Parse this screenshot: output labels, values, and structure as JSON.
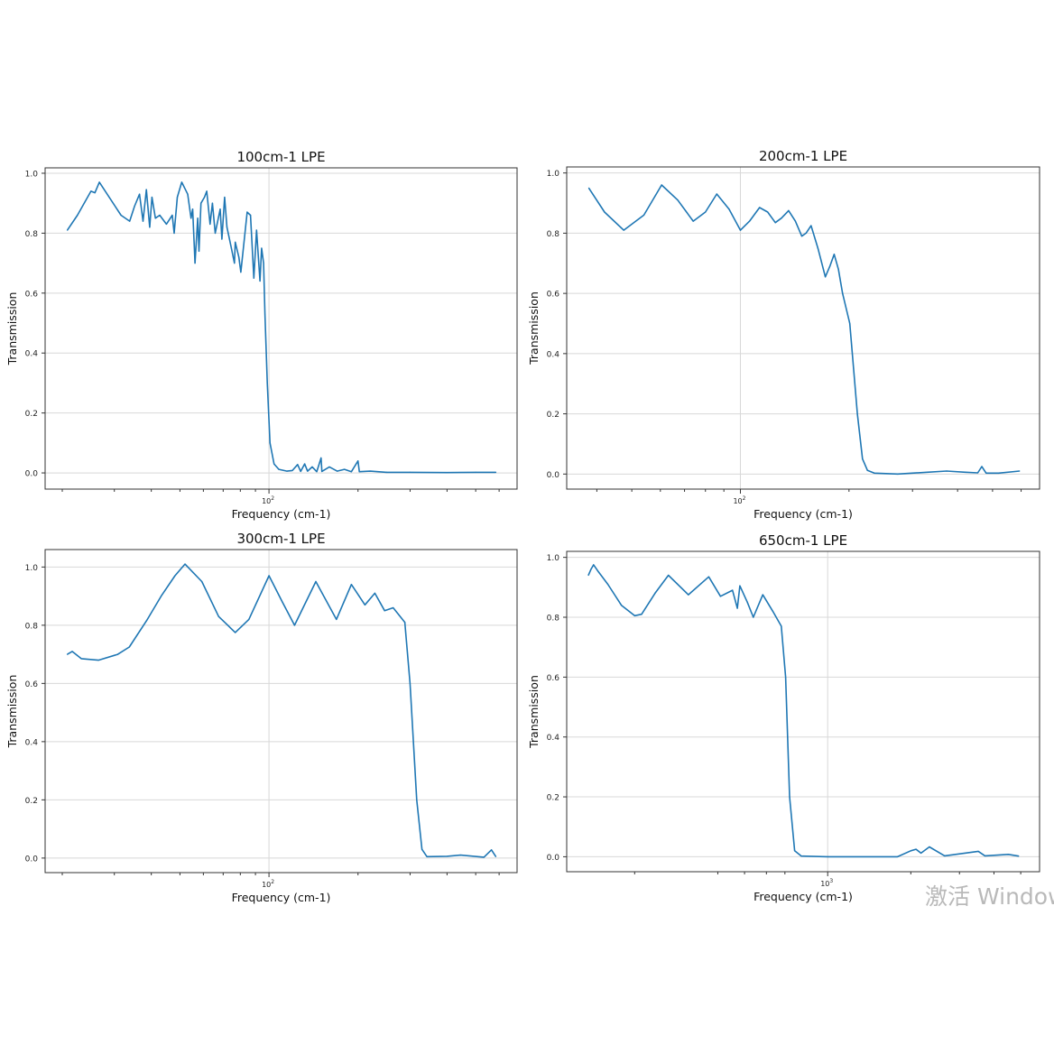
{
  "chart_data": [
    {
      "type": "line",
      "title": "100cm-1 LPE",
      "xlabel": "Frequency (cm-1)",
      "ylabel": "Transmission",
      "xscale": "log",
      "xlim": [
        17.5,
        690
      ],
      "ylim": [
        -0.054,
        1.018
      ],
      "yticks": [
        "0.0",
        "0.2",
        "0.4",
        "0.6",
        "0.8",
        "1.0"
      ],
      "xtick_major": {
        "value": 100,
        "base": "10",
        "exp": "2"
      },
      "xtick_minor": [
        20,
        30,
        40,
        50,
        60,
        70,
        80,
        90,
        200,
        300,
        400,
        500,
        600
      ],
      "grid": true,
      "color": "#1f77b4",
      "x": [
        20.8,
        22.5,
        25.0,
        25.8,
        26.7,
        31.6,
        33.8,
        35.1,
        36.5,
        37.5,
        38.5,
        39.5,
        40.2,
        41.3,
        42.7,
        45.0,
        47.1,
        47.8,
        49.0,
        50.7,
        53.1,
        54.5,
        55.2,
        56.2,
        57.4,
        58.0,
        58.9,
        60.5,
        61.6,
        63.2,
        64.4,
        65.8,
        68.4,
        69.3,
        70.8,
        72.1,
        74.6,
        76.4,
        76.9,
        79.1,
        80.3,
        84.4,
        86.6,
        88.9,
        90.8,
        93.2,
        94.4,
        95.9,
        96.9,
        98.7,
        100.8,
        104,
        108,
        115,
        120,
        125,
        128,
        132,
        135,
        140,
        145,
        150,
        151,
        160,
        170,
        180,
        190,
        200,
        202,
        220,
        250,
        300,
        400,
        500,
        585
      ],
      "y": [
        0.81,
        0.86,
        0.94,
        0.935,
        0.97,
        0.86,
        0.84,
        0.89,
        0.93,
        0.84,
        0.945,
        0.82,
        0.92,
        0.85,
        0.86,
        0.83,
        0.86,
        0.8,
        0.92,
        0.97,
        0.93,
        0.85,
        0.88,
        0.7,
        0.85,
        0.74,
        0.9,
        0.92,
        0.94,
        0.83,
        0.9,
        0.8,
        0.88,
        0.78,
        0.92,
        0.82,
        0.75,
        0.7,
        0.77,
        0.72,
        0.67,
        0.87,
        0.86,
        0.65,
        0.81,
        0.64,
        0.75,
        0.7,
        0.53,
        0.3,
        0.1,
        0.03,
        0.012,
        0.006,
        0.008,
        0.028,
        0.005,
        0.03,
        0.006,
        0.02,
        0.004,
        0.05,
        0.005,
        0.02,
        0.006,
        0.012,
        0.004,
        0.04,
        0.004,
        0.006,
        0.002,
        0.002,
        0.001,
        0.002,
        0.002
      ]
    },
    {
      "type": "line",
      "title": "200cm-1 LPE",
      "xlabel": "Frequency (cm-1)",
      "ylabel": "Transmission",
      "xscale": "log",
      "xlim": [
        33,
        675
      ],
      "ylim": [
        -0.05,
        1.02
      ],
      "yticks": [
        "0.0",
        "0.2",
        "0.4",
        "0.6",
        "0.8",
        "1.0"
      ],
      "xtick_major": {
        "value": 100,
        "base": "10",
        "exp": "2"
      },
      "xtick_minor": [
        40,
        50,
        60,
        70,
        80,
        90,
        200,
        300,
        400,
        500,
        600
      ],
      "grid": true,
      "color": "#1f77b4",
      "x": [
        38,
        42,
        47.5,
        54,
        60.5,
        67,
        74,
        80,
        86,
        93,
        100,
        106,
        113,
        119,
        125,
        130,
        136,
        142,
        148,
        152,
        157,
        164,
        172,
        177,
        182,
        187,
        192,
        201,
        206,
        211,
        218,
        225,
        235,
        273,
        330,
        373,
        420,
        455,
        467,
        480,
        520,
        594
      ],
      "y": [
        0.95,
        0.87,
        0.81,
        0.86,
        0.96,
        0.91,
        0.84,
        0.87,
        0.93,
        0.88,
        0.81,
        0.84,
        0.885,
        0.87,
        0.835,
        0.85,
        0.875,
        0.84,
        0.79,
        0.8,
        0.825,
        0.75,
        0.655,
        0.69,
        0.73,
        0.68,
        0.6,
        0.5,
        0.35,
        0.2,
        0.05,
        0.012,
        0.003,
        0.0,
        0.006,
        0.01,
        0.006,
        0.004,
        0.025,
        0.003,
        0.003,
        0.01
      ]
    },
    {
      "type": "line",
      "title": "300cm-1 LPE",
      "xlabel": "Frequency (cm-1)",
      "ylabel": "Transmission",
      "xscale": "log",
      "xlim": [
        17.5,
        690
      ],
      "ylim": [
        -0.05,
        1.06
      ],
      "yticks": [
        "0.0",
        "0.2",
        "0.4",
        "0.6",
        "0.8",
        "1.0"
      ],
      "xtick_major": {
        "value": 100,
        "base": "10",
        "exp": "2"
      },
      "xtick_minor": [
        20,
        30,
        40,
        50,
        60,
        70,
        80,
        90,
        200,
        300,
        400,
        500,
        600
      ],
      "grid": true,
      "color": "#1f77b4",
      "x": [
        20.8,
        21.6,
        23.2,
        26.5,
        30.8,
        33.7,
        38.8,
        43.2,
        48.1,
        52,
        59.3,
        67.6,
        76.9,
        85.5,
        100,
        111,
        122,
        144,
        169,
        190,
        211,
        228,
        246,
        263,
        288,
        300,
        316,
        329,
        342,
        400,
        444,
        533,
        565,
        585
      ],
      "y": [
        0.7,
        0.71,
        0.685,
        0.68,
        0.7,
        0.725,
        0.82,
        0.9,
        0.97,
        1.01,
        0.95,
        0.83,
        0.775,
        0.82,
        0.97,
        0.88,
        0.8,
        0.95,
        0.82,
        0.94,
        0.87,
        0.91,
        0.85,
        0.86,
        0.81,
        0.6,
        0.2,
        0.03,
        0.005,
        0.006,
        0.01,
        0.003,
        0.028,
        0.005
      ]
    },
    {
      "type": "line",
      "title": "650cm-1 LPE",
      "xlabel": "Frequency (cm-1)",
      "ylabel": "Transmission",
      "xscale": "log",
      "xlim": [
        113.5,
        5850
      ],
      "ylim": [
        -0.05,
        1.02
      ],
      "yticks": [
        "0.0",
        "0.2",
        "0.4",
        "0.6",
        "0.8",
        "1.0"
      ],
      "xtick_major": {
        "value": 1000,
        "base": "10",
        "exp": "3"
      },
      "xtick_minor": [
        200,
        400,
        500,
        600,
        700,
        2000,
        3000,
        4000,
        5000
      ],
      "grid": true,
      "color": "#1f77b4",
      "x": [
        136,
        139,
        142,
        147,
        160,
        179,
        200,
        212,
        237,
        265,
        313,
        371,
        409,
        452,
        471,
        481,
        512,
        538,
        582,
        633,
        679,
        704,
        728,
        759,
        803,
        1000,
        1790,
        2000,
        2088,
        2176,
        2334,
        2651,
        3509,
        3710,
        4510,
        4915
      ],
      "y": [
        0.94,
        0.96,
        0.975,
        0.955,
        0.91,
        0.84,
        0.805,
        0.81,
        0.88,
        0.94,
        0.875,
        0.935,
        0.87,
        0.89,
        0.83,
        0.905,
        0.85,
        0.8,
        0.875,
        0.82,
        0.77,
        0.6,
        0.2,
        0.02,
        0.002,
        0.0,
        0.0,
        0.02,
        0.025,
        0.012,
        0.033,
        0.003,
        0.018,
        0.003,
        0.008,
        0.002
      ]
    }
  ],
  "watermark": "激活 Windows"
}
